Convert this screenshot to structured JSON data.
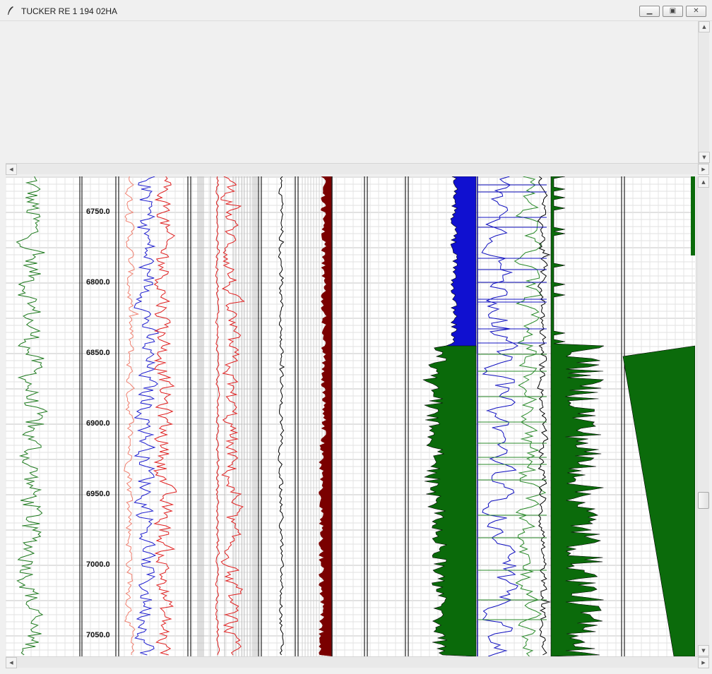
{
  "window": {
    "title": "TUCKER RE 1 194 02HA",
    "icon": "feather-icon",
    "controls": {
      "minimize": "minimize-icon",
      "maximize": "maximize-icon",
      "close": "close-icon"
    }
  },
  "scrollbars": {
    "up_arrow": "arrow-up-icon",
    "down_arrow": "arrow-down-icon",
    "left_arrow": "arrow-left-icon",
    "right_arrow": "arrow-right-icon"
  },
  "depth_track": {
    "labels": [
      "6750.0",
      "6800.0",
      "6850.0",
      "6900.0",
      "6950.0",
      "7000.0",
      "7050.0"
    ]
  },
  "colors": {
    "gamma_ray": "#1e7a1e",
    "resistivity_shallow": "#f08070",
    "resistivity_deep": "#e02020",
    "resistivity_medium": "#2020d0",
    "sonic": "#000000",
    "caliper_fill": "#7a0000",
    "porosity_fill_blue": "#1010d0",
    "porosity_fill_light": "#80c4f0",
    "porosity_fill_green": "#0a6a0a",
    "lithology_fill": "#0b6b0b",
    "grid": "#d2d2d2"
  }
}
